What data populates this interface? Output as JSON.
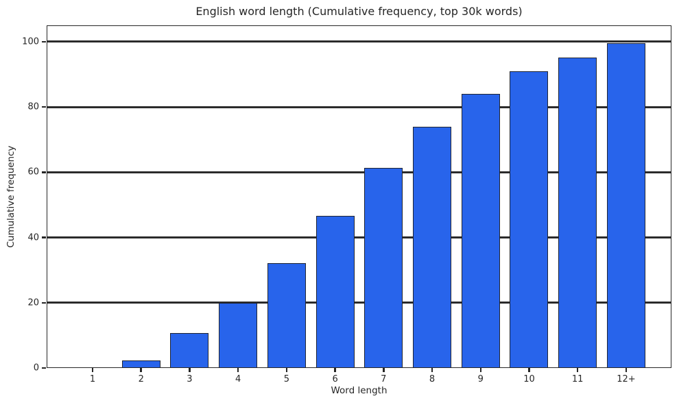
{
  "chart_data": {
    "type": "bar",
    "title": "English word length (Cumulative frequency, top 30k words)",
    "xlabel": "Word length",
    "ylabel": "Cumulative frequency",
    "categories": [
      "1",
      "2",
      "3",
      "4",
      "5",
      "6",
      "7",
      "8",
      "9",
      "10",
      "11",
      "12+"
    ],
    "values": [
      0.2,
      2.3,
      10.7,
      20.0,
      32.1,
      46.6,
      61.4,
      74.0,
      84.1,
      91.0,
      95.1,
      99.6
    ],
    "ylim": [
      0,
      105
    ],
    "yticks": [
      0,
      20,
      40,
      60,
      80,
      100
    ],
    "grid": "horizontal",
    "legend_position": "none",
    "colors": {
      "bar_fill": "#2864EB",
      "bar_edge": "#1f2430",
      "grid_line": "#2b2b2b",
      "spine": "#262626",
      "text": "#262626",
      "background": "#ffffff"
    }
  }
}
